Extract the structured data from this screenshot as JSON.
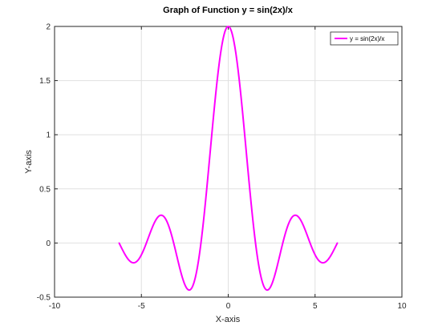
{
  "chart_data": {
    "type": "line",
    "title": "Graph of Function y = sin(2x)/x",
    "xlabel": "X-axis",
    "ylabel": "Y-axis",
    "xlim": [
      -10,
      10
    ],
    "ylim": [
      -0.5,
      2
    ],
    "x_ticks": [
      -10,
      -5,
      0,
      5,
      10
    ],
    "x_tick_labels": [
      "-10",
      "-5",
      "0",
      "5",
      "10"
    ],
    "y_ticks": [
      -0.5,
      0,
      0.5,
      1,
      1.5,
      2
    ],
    "y_tick_labels": [
      "-0.5",
      "0",
      "0.5",
      "1",
      "1.5",
      "2"
    ],
    "grid": true,
    "legend_position": "top-right",
    "series": [
      {
        "name": "y = sin(2x)/x",
        "color": "#ff00ff",
        "function": "sin(2x)/x",
        "x_range": [
          -6.28,
          6.28
        ]
      }
    ]
  }
}
